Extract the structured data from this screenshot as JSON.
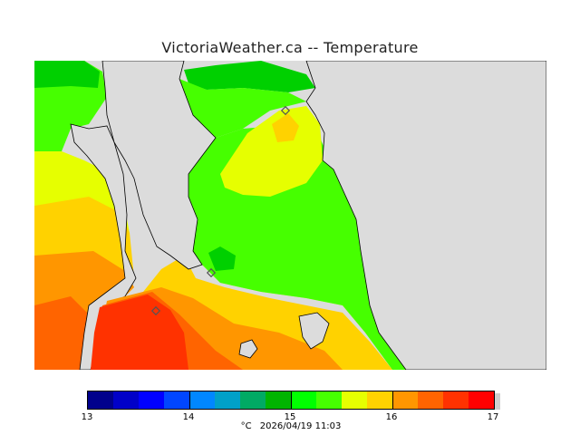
{
  "title": "VictoriaWeather.ca -- Temperature",
  "legend": {
    "colors": [
      "#00008c",
      "#0000c8",
      "#0000ff",
      "#0046ff",
      "#0087ff",
      "#00a0c8",
      "#00aa64",
      "#00b400",
      "#00ff00",
      "#46ff00",
      "#e6ff00",
      "#ffd200",
      "#ff9600",
      "#ff6400",
      "#ff3200",
      "#ff0000"
    ],
    "ticks": [
      "13",
      "14",
      "15",
      "16",
      "17"
    ],
    "unit": "°C",
    "timestamp": "2026/04/19 11:03"
  },
  "map": {
    "variable": "Temperature",
    "min_value": 13,
    "max_value": 17,
    "colors": {
      "land_gray": "#dcdcdc",
      "deep_green": "#00b400",
      "green": "#46ff00",
      "yellow": "#e6ff00",
      "gold": "#ffd200",
      "orange": "#ff9600",
      "red_orange": "#ff3200"
    },
    "stations": [
      "station-north",
      "station-middle",
      "station-south"
    ]
  }
}
